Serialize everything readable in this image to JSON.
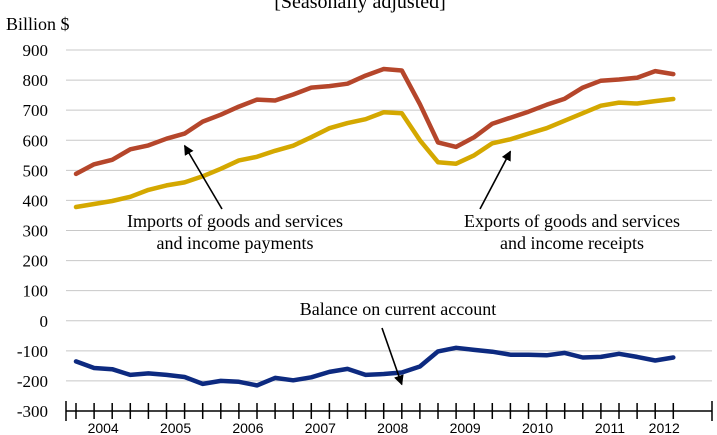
{
  "chart_data": {
    "type": "line",
    "subtitle": "[Seasonally adjusted]",
    "ylabel": "Billion $",
    "ylim": [
      -300,
      900
    ],
    "yticks": [
      -300,
      -200,
      -100,
      0,
      100,
      200,
      300,
      400,
      500,
      600,
      700,
      800,
      900
    ],
    "year_labels": [
      "2004",
      "2005",
      "2006",
      "2007",
      "2008",
      "2009",
      "2010",
      "2011",
      "2012"
    ],
    "x": [
      "2004Q1",
      "2004Q2",
      "2004Q3",
      "2004Q4",
      "2005Q1",
      "2005Q2",
      "2005Q3",
      "2005Q4",
      "2006Q1",
      "2006Q2",
      "2006Q3",
      "2006Q4",
      "2007Q1",
      "2007Q2",
      "2007Q3",
      "2007Q4",
      "2008Q1",
      "2008Q2",
      "2008Q3",
      "2008Q4",
      "2009Q1",
      "2009Q2",
      "2009Q3",
      "2009Q4",
      "2010Q1",
      "2010Q2",
      "2010Q3",
      "2010Q4",
      "2011Q1",
      "2011Q2",
      "2011Q3",
      "2011Q4",
      "2012Q1",
      "2012Q2"
    ],
    "grid": "horizontal",
    "series": [
      {
        "key": "imports",
        "color": "#b5462b",
        "values": [
          488,
          520,
          535,
          570,
          583,
          605,
          622,
          662,
          685,
          712,
          735,
          732,
          752,
          775,
          780,
          788,
          815,
          837,
          832,
          720,
          593,
          578,
          610,
          655,
          675,
          695,
          718,
          738,
          775,
          798,
          802,
          808,
          830,
          820
        ]
      },
      {
        "key": "exports",
        "color": "#d4a800",
        "values": [
          378,
          388,
          398,
          412,
          435,
          450,
          460,
          480,
          505,
          533,
          545,
          565,
          582,
          610,
          640,
          657,
          670,
          693,
          690,
          600,
          527,
          522,
          550,
          590,
          603,
          622,
          640,
          665,
          690,
          715,
          725,
          722,
          730,
          737
        ]
      },
      {
        "key": "balance",
        "color": "#0d2a80",
        "values": [
          -135,
          -157,
          -161,
          -180,
          -175,
          -180,
          -187,
          -210,
          -200,
          -203,
          -215,
          -190,
          -198,
          -188,
          -170,
          -160,
          -180,
          -177,
          -172,
          -152,
          -102,
          -90,
          -97,
          -103,
          -113,
          -113,
          -115,
          -107,
          -122,
          -120,
          -110,
          -120,
          -132,
          -122
        ]
      }
    ],
    "annotations": [
      {
        "lines": [
          "Imports of goods and services",
          "and income payments"
        ],
        "series": "imports",
        "arrow_to_index": 6
      },
      {
        "lines": [
          "Exports of goods and services",
          "and income receipts"
        ],
        "series": "exports",
        "arrow_to_index": 24
      },
      {
        "lines": [
          "Balance on current account"
        ],
        "series": "balance",
        "arrow_to_index": 18
      }
    ]
  }
}
